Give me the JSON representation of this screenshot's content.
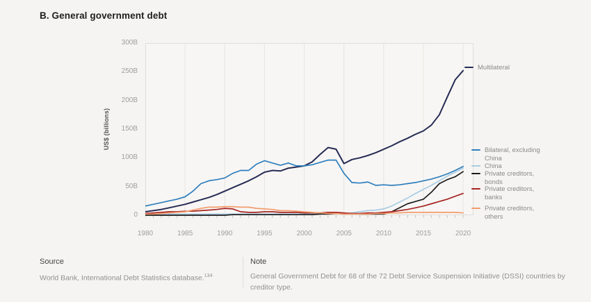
{
  "title": "B. General government debt",
  "chart_data": {
    "type": "line",
    "title": "B. General government debt",
    "xlabel": "",
    "ylabel": "US$ (billions)",
    "xlim": [
      1980,
      2020
    ],
    "ylim": [
      0,
      300
    ],
    "grid": "vertical-only",
    "legend_position": "right-of-lines",
    "x_ticks": [
      1980,
      1985,
      1990,
      1995,
      2000,
      2005,
      2010,
      2015,
      2020
    ],
    "y_ticks": [
      {
        "value": 0,
        "label": "0"
      },
      {
        "value": 50,
        "label": "50B"
      },
      {
        "value": 100,
        "label": "100B"
      },
      {
        "value": 150,
        "label": "150B"
      },
      {
        "value": 200,
        "label": "200B"
      },
      {
        "value": 250,
        "label": "250B"
      },
      {
        "value": 300,
        "label": "300B"
      }
    ],
    "years": [
      1980,
      1981,
      1982,
      1983,
      1984,
      1985,
      1986,
      1987,
      1988,
      1989,
      1990,
      1991,
      1992,
      1993,
      1994,
      1995,
      1996,
      1997,
      1998,
      1999,
      2000,
      2001,
      2002,
      2003,
      2004,
      2005,
      2006,
      2007,
      2008,
      2009,
      2010,
      2011,
      2012,
      2013,
      2014,
      2015,
      2016,
      2017,
      2018,
      2019,
      2020
    ],
    "series": [
      {
        "id": "multilateral",
        "name": "Multilateral",
        "color": "#262b54",
        "values": [
          6,
          8,
          10,
          13,
          16,
          19,
          23,
          27,
          31,
          36,
          42,
          48,
          54,
          60,
          67,
          75,
          78,
          77,
          82,
          84,
          86,
          93,
          106,
          118,
          115,
          90,
          97,
          100,
          104,
          109,
          115,
          121,
          128,
          134,
          141,
          147,
          157,
          175,
          206,
          236,
          252
        ]
      },
      {
        "id": "bilateral",
        "name": "Bilateral, excluding\nChina",
        "color": "#2e7ebd",
        "values": [
          16,
          19,
          22,
          25,
          28,
          32,
          42,
          55,
          60,
          62,
          65,
          73,
          78,
          78,
          89,
          95,
          91,
          87,
          91,
          86,
          86,
          88,
          92,
          96,
          96,
          73,
          57,
          56,
          58,
          52,
          53,
          52,
          53,
          55,
          57,
          60,
          63,
          67,
          72,
          78,
          85
        ]
      },
      {
        "id": "china",
        "name": "China",
        "color": "#a8cce3",
        "values": [
          2,
          2,
          2,
          2,
          2,
          2,
          2,
          2,
          2,
          2,
          2,
          2,
          2,
          2,
          2,
          2,
          2,
          2,
          2,
          2,
          2,
          2,
          2,
          3,
          3,
          3,
          4,
          6,
          8,
          9,
          11,
          16,
          23,
          30,
          38,
          45,
          52,
          60,
          68,
          75,
          82
        ]
      },
      {
        "id": "bonds",
        "name": "Private creditors,\nbonds",
        "color": "#1b1b1b",
        "values": [
          0,
          0,
          0,
          0,
          0,
          0,
          0,
          0,
          0,
          0,
          0,
          1,
          1,
          1,
          1,
          1,
          1,
          1,
          1,
          1,
          1,
          1,
          2,
          2,
          3,
          3,
          3,
          2,
          2,
          2,
          2,
          6,
          13,
          20,
          24,
          28,
          40,
          55,
          62,
          67,
          76
        ]
      },
      {
        "id": "banks",
        "name": "Private creditors,\nbanks",
        "color": "#a62421",
        "values": [
          3,
          4,
          5,
          6,
          6,
          7,
          7,
          8,
          9,
          10,
          12,
          11,
          6,
          5,
          5,
          6,
          6,
          5,
          5,
          5,
          4,
          4,
          4,
          5,
          5,
          4,
          3,
          3,
          4,
          4,
          5,
          6,
          8,
          10,
          13,
          16,
          20,
          24,
          28,
          33,
          38
        ]
      },
      {
        "id": "others",
        "name": "Private creditors,\nothers",
        "color": "#f29c6d",
        "values": [
          2,
          2,
          3,
          4,
          5,
          6,
          9,
          12,
          14,
          14,
          15,
          15,
          14,
          14,
          12,
          11,
          10,
          8,
          8,
          7,
          6,
          5,
          4,
          3,
          3,
          2,
          2,
          2,
          2,
          3,
          3,
          4,
          4,
          5,
          5,
          5,
          5,
          5,
          5,
          5,
          4
        ]
      }
    ]
  },
  "footer": {
    "source_heading": "Source",
    "source_text": "World Bank, International Debt Statistics database.",
    "source_footnote": "134",
    "note_heading": "Note",
    "note_text": "General Government Debt for 68 of the 72 Debt Service Suspension Initiative (DSSI) countries by creditor type."
  }
}
